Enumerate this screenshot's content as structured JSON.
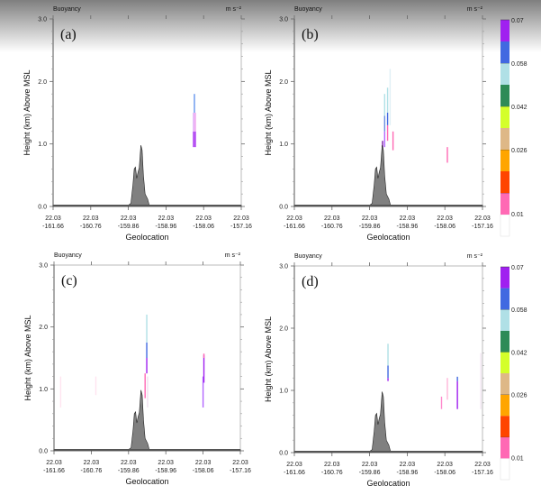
{
  "chart_data": {
    "type": "panel-cross-section",
    "figure_note": "Four vertical cross-section panels of buoyancy vs geolocation",
    "colorbar": {
      "units": "m s⁻²",
      "levels": [
        {
          "color": "#ffffff",
          "label": ""
        },
        {
          "color": "#ff69b4",
          "label": "0.01"
        },
        {
          "color": "#ff4500",
          "label": ""
        },
        {
          "color": "#ffa500",
          "label": "0.026"
        },
        {
          "color": "#deb887",
          "label": ""
        },
        {
          "color": "#d4ff2a",
          "label": "0.042"
        },
        {
          "color": "#2e8b57",
          "label": ""
        },
        {
          "color": "#b0e0e6",
          "label": "0.058"
        },
        {
          "color": "#4169e1",
          "label": ""
        },
        {
          "color": "#a020f0",
          "label": "0.07"
        }
      ],
      "tick_labels": [
        "0.01",
        "0.026",
        "0.042",
        "0.058",
        "0.07"
      ]
    },
    "axes": {
      "xlabel": "Geolocation",
      "ylabel": "Height (km) Above MSL",
      "ylim": [
        0,
        3
      ],
      "yticks": [
        "0.0",
        "1.0",
        "2.0",
        "3.0"
      ],
      "xlim": [
        -161.66,
        -157.16
      ],
      "xticks": [
        {
          "lat": "22.03",
          "lon": "-161.66"
        },
        {
          "lat": "22.03",
          "lon": "-160.76"
        },
        {
          "lat": "22.03",
          "lon": "-159.86"
        },
        {
          "lat": "22.03",
          "lon": "-158.96"
        },
        {
          "lat": "22.03",
          "lon": "-158.06"
        },
        {
          "lat": "22.03",
          "lon": "-157.16"
        }
      ]
    },
    "terrain": {
      "color": "#808080",
      "profile": [
        [
          -161.66,
          0.02
        ],
        [
          -159.86,
          0.02
        ],
        [
          -159.8,
          0.05
        ],
        [
          -159.75,
          0.35
        ],
        [
          -159.72,
          0.6
        ],
        [
          -159.69,
          0.63
        ],
        [
          -159.66,
          0.45
        ],
        [
          -159.63,
          0.55
        ],
        [
          -159.6,
          0.62
        ],
        [
          -159.56,
          0.98
        ],
        [
          -159.53,
          0.9
        ],
        [
          -159.5,
          0.5
        ],
        [
          -159.46,
          0.2
        ],
        [
          -159.4,
          0.12
        ],
        [
          -159.36,
          0.02
        ],
        [
          -157.16,
          0.02
        ]
      ]
    },
    "panels": [
      {
        "id": "a",
        "label": "(a)",
        "title_left": "Buoyancy",
        "title_right": "m s⁻²",
        "features": [
          {
            "lon": -158.3,
            "z0": 0.95,
            "z1": 1.2,
            "color": "#a020f0"
          },
          {
            "lon": -158.3,
            "z0": 1.2,
            "z1": 1.5,
            "color": "#dda0f5"
          },
          {
            "lon": -158.28,
            "z0": 1.5,
            "z1": 1.8,
            "color": "#6495ed"
          },
          {
            "lon": -158.26,
            "z0": 0.95,
            "z1": 1.2,
            "color": "#a020f0"
          },
          {
            "lon": -158.26,
            "z0": 1.2,
            "z1": 1.5,
            "color": "#ee99ee"
          }
        ]
      },
      {
        "id": "b",
        "label": "(b)",
        "title_left": "Buoyancy",
        "title_right": "m s⁻²",
        "features": [
          {
            "lon": -159.55,
            "z0": 0.9,
            "z1": 1.05,
            "color": "#7b1fa2"
          },
          {
            "lon": -159.5,
            "z0": 0.95,
            "z1": 1.2,
            "color": "#b266ff"
          },
          {
            "lon": -159.5,
            "z0": 1.2,
            "z1": 1.45,
            "color": "#6a8de0"
          },
          {
            "lon": -159.5,
            "z0": 1.45,
            "z1": 1.8,
            "color": "#b0e0e6"
          },
          {
            "lon": -159.43,
            "z0": 1.05,
            "z1": 1.3,
            "color": "#ff69b4"
          },
          {
            "lon": -159.43,
            "z0": 1.3,
            "z1": 1.5,
            "color": "#4169e1"
          },
          {
            "lon": -159.43,
            "z0": 1.5,
            "z1": 1.9,
            "color": "#b0e0e6"
          },
          {
            "lon": -159.37,
            "z0": 1.3,
            "z1": 2.2,
            "color": "#e0f0f5"
          },
          {
            "lon": -159.3,
            "z0": 0.9,
            "z1": 1.2,
            "color": "#ff69b4"
          },
          {
            "lon": -158.0,
            "z0": 0.7,
            "z1": 0.95,
            "color": "#ff69b4"
          }
        ]
      },
      {
        "id": "c",
        "label": "(c)",
        "title_left": "Buoyancy",
        "title_right": "m s⁻²",
        "features": [
          {
            "lon": -161.5,
            "z0": 0.7,
            "z1": 1.2,
            "color": "#ffe4f0"
          },
          {
            "lon": -160.65,
            "z0": 0.9,
            "z1": 1.2,
            "color": "#ffe4f0"
          },
          {
            "lon": -159.46,
            "z0": 0.85,
            "z1": 1.25,
            "color": "#ff69b4"
          },
          {
            "lon": -159.42,
            "z0": 1.25,
            "z1": 1.5,
            "color": "#a020f0"
          },
          {
            "lon": -159.42,
            "z0": 1.5,
            "z1": 1.75,
            "color": "#4169e1"
          },
          {
            "lon": -159.42,
            "z0": 1.75,
            "z1": 2.2,
            "color": "#b0e0e6"
          },
          {
            "lon": -159.4,
            "z0": 0.7,
            "z1": 1.2,
            "color": "#f0e0f0"
          },
          {
            "lon": -158.06,
            "z0": 0.7,
            "z1": 1.2,
            "color": "#b266ff"
          },
          {
            "lon": -158.04,
            "z0": 1.1,
            "z1": 1.55,
            "color": "#a020f0"
          },
          {
            "lon": -158.04,
            "z0": 1.5,
            "z1": 1.57,
            "color": "#ff69b4"
          }
        ]
      },
      {
        "id": "d",
        "label": "(d)",
        "title_left": "Buoyancy",
        "title_right": "m s⁻²",
        "features": [
          {
            "lon": -159.42,
            "z0": 1.15,
            "z1": 1.2,
            "color": "#a020f0"
          },
          {
            "lon": -159.42,
            "z0": 1.2,
            "z1": 1.4,
            "color": "#4169e1"
          },
          {
            "lon": -159.42,
            "z0": 1.4,
            "z1": 1.75,
            "color": "#b0e0e6"
          },
          {
            "lon": -158.14,
            "z0": 0.7,
            "z1": 0.9,
            "color": "#ff88cc"
          },
          {
            "lon": -158.0,
            "z0": 0.85,
            "z1": 1.2,
            "color": "#ffb6d9"
          },
          {
            "lon": -157.76,
            "z0": 0.7,
            "z1": 1.15,
            "color": "#a020f0"
          },
          {
            "lon": -157.76,
            "z0": 1.15,
            "z1": 1.22,
            "color": "#4169e1"
          },
          {
            "lon": -157.2,
            "z0": 0.7,
            "z1": 1.6,
            "color": "#f3e6f3"
          }
        ]
      }
    ]
  }
}
